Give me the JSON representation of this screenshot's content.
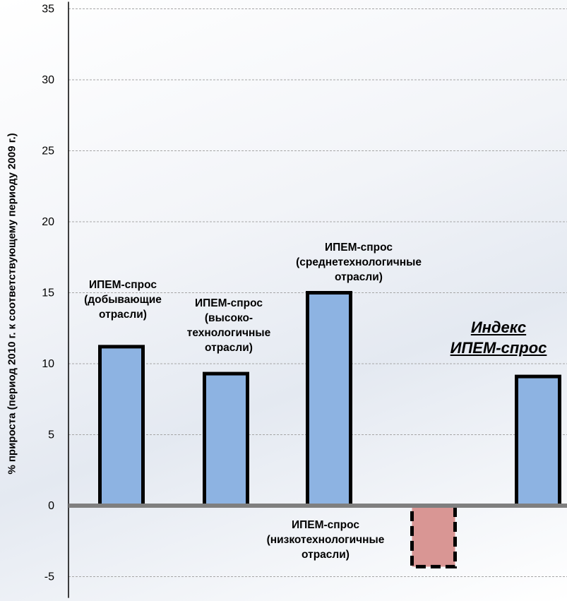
{
  "chart_data": {
    "type": "bar",
    "ylabel": "% прироста (период 2010 г. к соответствующему  периоду 2009 г.)",
    "ylim": [
      -6.5,
      35.5
    ],
    "yticks": [
      35,
      30,
      25,
      20,
      15,
      10,
      5,
      0,
      -5
    ],
    "grid": true,
    "categories": [
      [
        "ИПЕМ-спрос",
        "(добывающие",
        "отрасли)"
      ],
      [
        "ИПЕМ-спрос",
        "(высоко-",
        "технологичные",
        "отрасли)"
      ],
      [
        "ИПЕМ-спрос",
        "(среднетехнологичные",
        "отрасли)"
      ],
      [
        "ИПЕМ-спрос",
        "(низкотехнологичные",
        "отрасли)"
      ],
      [
        "Индекс",
        "ИПЕМ-спрос"
      ]
    ],
    "values": [
      11.2,
      9.3,
      15.0,
      -4.3,
      9.1
    ],
    "colors": {
      "positive_bar": "#8db3e2",
      "negative_bar": "#d99694",
      "grid": "#a6a6a6",
      "axis": "#7f7f7f"
    }
  }
}
